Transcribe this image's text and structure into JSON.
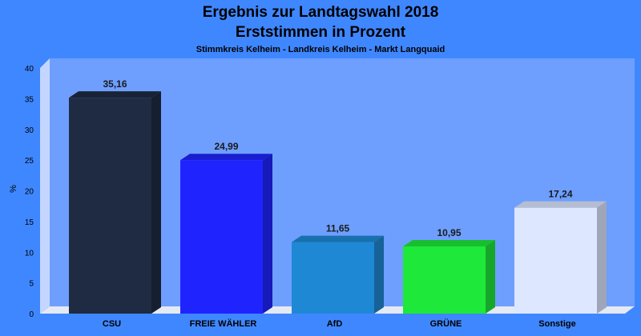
{
  "chart_data": {
    "type": "bar",
    "title": "Ergebnis zur Landtagswahl 2018",
    "subtitle": "Erststimmen in Prozent",
    "caption": "Stimmkreis Kelheim - Landkreis Kelheim - Markt Langquaid",
    "ylabel": "%",
    "xlabel": "",
    "ylim": [
      0,
      40
    ],
    "yticks": [
      0,
      5,
      10,
      15,
      20,
      25,
      30,
      35,
      40
    ],
    "grid": false,
    "categories": [
      "CSU",
      "FREIE WÄHLER",
      "AfD",
      "GRÜNE",
      "Sonstige"
    ],
    "values": [
      35.16,
      24.99,
      11.65,
      10.95,
      17.24
    ],
    "value_labels": [
      "35,16",
      "24,99",
      "11,65",
      "10,95",
      "17,24"
    ],
    "colors": [
      "#1f2b42",
      "#1f24ff",
      "#1e88d5",
      "#1ee83a",
      "#dde7ff"
    ]
  }
}
